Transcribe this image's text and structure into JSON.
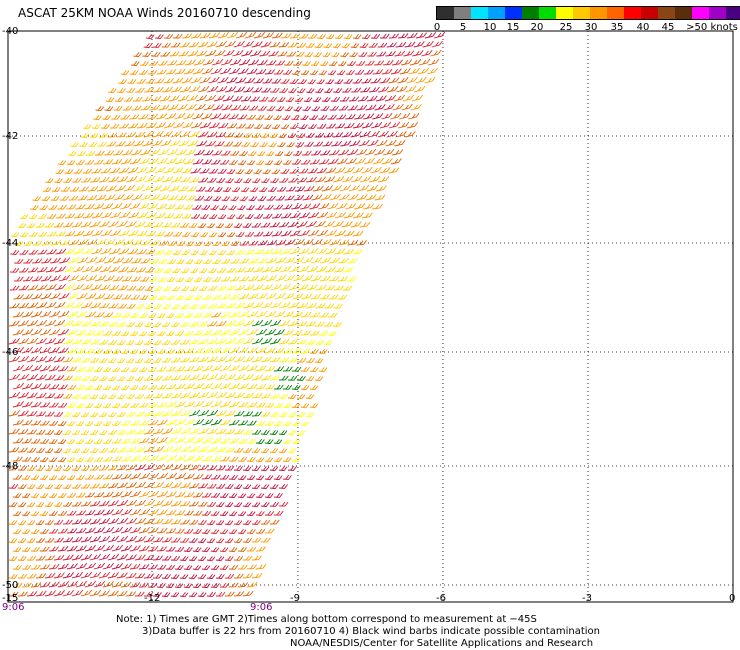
{
  "title": "ASCAT 25KM NOAA Winds 20160710 descending",
  "colorbar": {
    "colors": [
      "#2f2f2f",
      "#7f7f7f",
      "#00e5ff",
      "#00a0ff",
      "#0030ff",
      "#008000",
      "#00dd00",
      "#ffff00",
      "#ffc800",
      "#ff9600",
      "#ff6400",
      "#ff0000",
      "#c80000",
      "#8b4513",
      "#5a2d0c",
      "#ff00ff",
      "#a000c8",
      "#4b0082"
    ],
    "labels": [
      "0",
      "5",
      "10",
      "15",
      "20",
      "25",
      "30",
      "35",
      "40",
      "45",
      ">50 knots"
    ]
  },
  "axes": {
    "lon_labels": [
      "-15",
      "-12",
      "-9",
      "-6",
      "-3",
      "0"
    ],
    "lat_labels": [
      "-40",
      "-42",
      "-44",
      "-46",
      "-48",
      "-50"
    ]
  },
  "time_labels": [
    "9:06",
    "9:06"
  ],
  "notes": [
    "Note: 1) Times are GMT 2)Times along bottom correspond to measurement at −45S",
    "3)Data buffer is 22 hrs from 20160710 4) Black wind barbs indicate possible contamination",
    "NOAA/NESDIS/Center for Satellite Applications and Research"
  ],
  "wind_colors": {
    "light_yellow": "#ffff00",
    "yellow": "#ffd700",
    "orange": "#ff9900",
    "dark_orange": "#e06000",
    "red": "#e02030",
    "crimson": "#c8103c",
    "green": "#008000"
  }
}
